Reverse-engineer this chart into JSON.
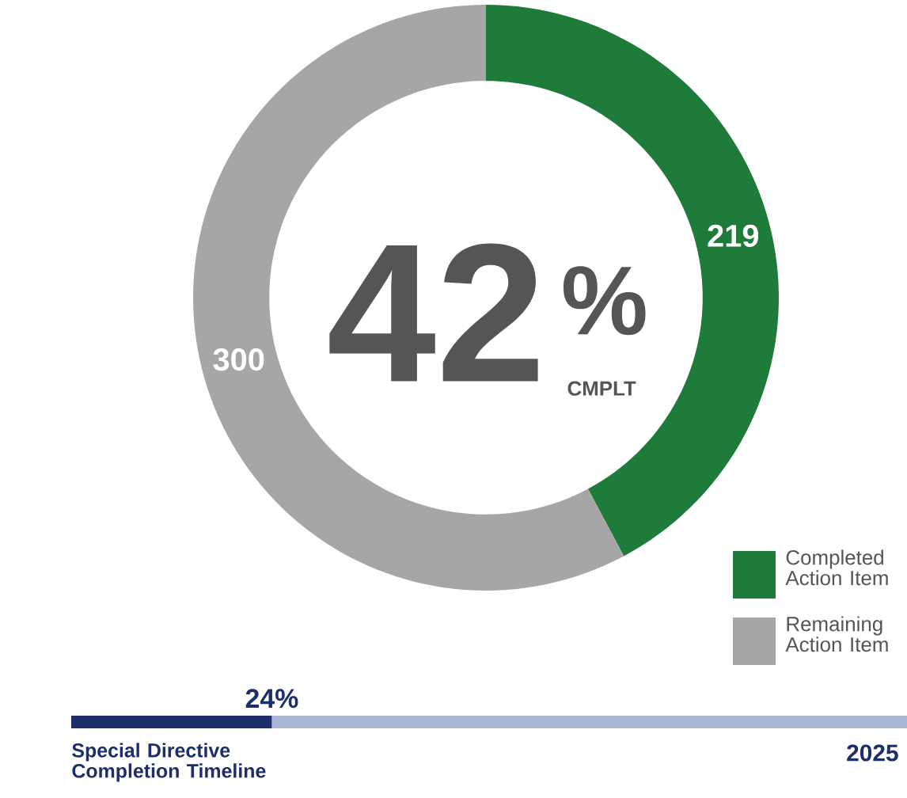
{
  "chart_data": [
    {
      "type": "donut",
      "categories": [
        "Completed Action Item",
        "Remaining Action Item"
      ],
      "values": [
        219,
        300
      ],
      "colors": [
        "#1e7b3a",
        "#a6a6a6"
      ],
      "data_labels": true,
      "legend": "bottom right",
      "annotations": [
        "42",
        "%",
        "CMPLT"
      ]
    },
    {
      "type": "bar",
      "orientation": "horizontal",
      "stacked": true,
      "title": "Special Directive Completion Timeline",
      "categories": [
        null
      ],
      "series": [
        {
          "color": "#1c2f6b",
          "values": [
            24
          ],
          "value_labels": [
            "24%"
          ]
        },
        {
          "color": "#aab4d4",
          "values": [
            76
          ]
        }
      ],
      "xlim": [
        0,
        100
      ],
      "tick_labels": false,
      "annotations": [
        "2025"
      ]
    }
  ]
}
